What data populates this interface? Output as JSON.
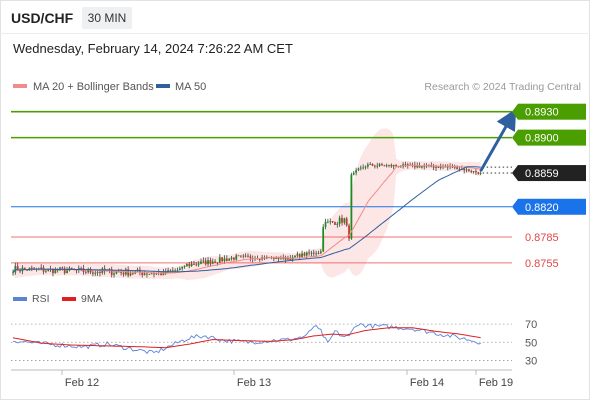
{
  "header": {
    "symbol": "USD/CHF",
    "timeframe": "30 MIN",
    "datetime": "Wednesday, February 14, 2024 7:26:22 AM CET"
  },
  "legend": {
    "ma20": {
      "label": "MA 20 + Bollinger Bands",
      "color": "#f28b8b"
    },
    "ma50": {
      "label": "MA 50",
      "color": "#2f5f9e"
    },
    "rsi": {
      "label": "RSI",
      "color": "#5b84d8"
    },
    "rsi_ma": {
      "label": "9MA",
      "color": "#e02020"
    }
  },
  "credit": "Research © 2024 Trading Central",
  "colors": {
    "up": "#1f8a1f",
    "down": "#c0392b",
    "target_green": "#4a9e00",
    "pivot_blue": "#1a73e8",
    "support_red": "#f07070",
    "last_price": "#222222",
    "arrow": "#2f5f9e"
  },
  "chart_data": [
    {
      "type": "candlestick",
      "x_ticks": [
        "Feb 12",
        "Feb 13",
        "Feb 14",
        "Feb 19"
      ],
      "last_price": {
        "label": "0.8859",
        "value": 0.8859
      },
      "levels": [
        {
          "label": "0.8930",
          "value": 0.893,
          "kind": "resistance-target"
        },
        {
          "label": "0.8900",
          "value": 0.89,
          "kind": "resistance-target"
        },
        {
          "label": "0.8820",
          "value": 0.882,
          "kind": "pivot"
        },
        {
          "label": "0.8785",
          "value": 0.8785,
          "kind": "support"
        },
        {
          "label": "0.8755",
          "value": 0.8755,
          "kind": "support"
        }
      ],
      "segments": [
        {
          "from": 0,
          "to": 63,
          "start": 0.8748,
          "end": 0.8743,
          "amp": 0.0008
        },
        {
          "from": 64,
          "to": 72,
          "start": 0.8743,
          "end": 0.8748,
          "amp": 0.0006
        },
        {
          "from": 73,
          "to": 94,
          "start": 0.8752,
          "end": 0.8761,
          "amp": 0.0006
        },
        {
          "from": 95,
          "to": 119,
          "start": 0.8762,
          "end": 0.876,
          "amp": 0.0004
        },
        {
          "from": 120,
          "to": 131,
          "start": 0.8763,
          "end": 0.8768,
          "amp": 0.0004
        },
        {
          "from": 132,
          "to": 141,
          "start": 0.88,
          "end": 0.8805,
          "amp": 0.0008
        },
        {
          "from": 142,
          "to": 143,
          "start": 0.8796,
          "end": 0.8786,
          "amp": 0.0006
        },
        {
          "from": 144,
          "to": 150,
          "start": 0.8855,
          "end": 0.8868,
          "amp": 0.0006
        },
        {
          "from": 151,
          "to": 186,
          "start": 0.8868,
          "end": 0.8866,
          "amp": 0.0004
        },
        {
          "from": 187,
          "to": 199,
          "start": 0.8866,
          "end": 0.8859,
          "amp": 0.0003
        }
      ],
      "projection_target": 0.893,
      "ylim": [
        0.8726,
        0.8947
      ]
    },
    {
      "type": "line",
      "title": "RSI",
      "y_ticks": [
        70,
        50,
        30
      ],
      "ylim": [
        25,
        80
      ],
      "rsi_points": [
        [
          0,
          52
        ],
        [
          10,
          49
        ],
        [
          20,
          47
        ],
        [
          30,
          45
        ],
        [
          40,
          48
        ],
        [
          50,
          43
        ],
        [
          60,
          38
        ],
        [
          66,
          45
        ],
        [
          75,
          55
        ],
        [
          82,
          57
        ],
        [
          90,
          52
        ],
        [
          100,
          50
        ],
        [
          110,
          52
        ],
        [
          118,
          53
        ],
        [
          125,
          57
        ],
        [
          128,
          68
        ],
        [
          131,
          62
        ],
        [
          134,
          48
        ],
        [
          137,
          62
        ],
        [
          140,
          57
        ],
        [
          143,
          56
        ],
        [
          146,
          70
        ],
        [
          152,
          68
        ],
        [
          160,
          67
        ],
        [
          170,
          65
        ],
        [
          180,
          60
        ],
        [
          190,
          55
        ],
        [
          199,
          50
        ]
      ],
      "ma_points": [
        [
          0,
          55
        ],
        [
          12,
          49
        ],
        [
          25,
          47
        ],
        [
          40,
          46
        ],
        [
          55,
          45
        ],
        [
          65,
          44
        ],
        [
          75,
          48
        ],
        [
          85,
          53
        ],
        [
          95,
          52
        ],
        [
          110,
          51
        ],
        [
          120,
          53
        ],
        [
          128,
          57
        ],
        [
          136,
          59
        ],
        [
          142,
          58
        ],
        [
          150,
          63
        ],
        [
          160,
          66
        ],
        [
          170,
          66
        ],
        [
          180,
          62
        ],
        [
          190,
          59
        ],
        [
          199,
          55
        ]
      ]
    }
  ]
}
